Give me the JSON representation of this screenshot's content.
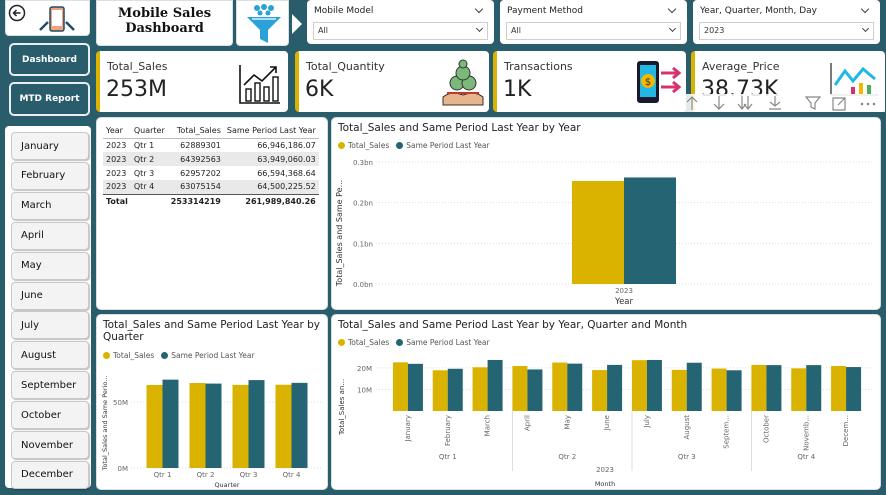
{
  "colors": {
    "bg": "#2a5d6c",
    "gold": "#d9b300",
    "teal": "#246473"
  },
  "title": {
    "line1": "Mobile Sales",
    "line2": "Dashboard"
  },
  "nav": {
    "dashboard": "Dashboard",
    "mtd": "MTD Report"
  },
  "months": [
    "January",
    "February",
    "March",
    "April",
    "May",
    "June",
    "July",
    "August",
    "September",
    "October",
    "November",
    "December"
  ],
  "filters": [
    {
      "label": "Mobile Model",
      "value": "All"
    },
    {
      "label": "Payment Method",
      "value": "All"
    },
    {
      "label": "Year, Quarter, Month, Day",
      "value": "2023"
    }
  ],
  "kpis": [
    {
      "label": "Total_Sales",
      "value": "253M",
      "icon": "growth-chart-icon"
    },
    {
      "label": "Total_Quantity",
      "value": "6K",
      "icon": "money-bag-hand-icon"
    },
    {
      "label": "Transactions",
      "value": "1K",
      "icon": "phone-payment-icon"
    },
    {
      "label": "Average_Price",
      "value": "38.73K",
      "icon": "line-chart-icon"
    }
  ],
  "table": {
    "headers": [
      "Year",
      "Quarter",
      "Total_Sales",
      "Same Period Last Year"
    ],
    "rows": [
      [
        "2023",
        "Qtr 1",
        "62889301",
        "66,946,186.07"
      ],
      [
        "2023",
        "Qtr 2",
        "64392563",
        "63,949,060.03"
      ],
      [
        "2023",
        "Qtr 3",
        "62957202",
        "66,594,368.64"
      ],
      [
        "2023",
        "Qtr 4",
        "63075154",
        "64,500,225.52"
      ]
    ],
    "total": [
      "Total",
      "",
      "253314219",
      "261,989,840.26"
    ]
  },
  "legend": {
    "s1": "Total_Sales",
    "s2": "Same Period Last Year"
  },
  "chart_data": [
    {
      "type": "bar",
      "title": "Total_Sales and Same Period Last Year by Year",
      "xlabel": "Year",
      "ylabel": "Total_Sales and Same Pe...",
      "categories": [
        "2023"
      ],
      "yticks": [
        "0.0bn",
        "0.1bn",
        "0.2bn",
        "0.3bn"
      ],
      "ylim": [
        0,
        300000000
      ],
      "series": [
        {
          "name": "Total_Sales",
          "values": [
            253314219
          ]
        },
        {
          "name": "Same Period Last Year",
          "values": [
            261989840.26
          ]
        }
      ]
    },
    {
      "type": "bar",
      "title": "Total_Sales and Same Period Last Year by Quarter",
      "xlabel": "Quarter",
      "ylabel": "Total_Sales and Same Perio...",
      "categories": [
        "Qtr 1",
        "Qtr 2",
        "Qtr 3",
        "Qtr 4"
      ],
      "yticks": [
        "0M",
        "50M"
      ],
      "ylim": [
        0,
        75000000
      ],
      "series": [
        {
          "name": "Total_Sales",
          "values": [
            62889301,
            64392563,
            62957202,
            63075154
          ]
        },
        {
          "name": "Same Period Last Year",
          "values": [
            66946186.07,
            63949060.03,
            66594368.64,
            64500225.52
          ]
        }
      ]
    },
    {
      "type": "bar",
      "title": "Total_Sales and Same Period Last Year by Year, Quarter and Month",
      "xlabel": "Month",
      "ylabel": "Total_Sales an...",
      "categories": [
        "January",
        "February",
        "March",
        "April",
        "May",
        "June",
        "July",
        "August",
        "Septem...",
        "October",
        "Novemb...",
        "Decem..."
      ],
      "tick_display": [
        "January",
        "February",
        "March",
        "April",
        "May",
        "June",
        "July",
        "August",
        "Septem...",
        "October",
        "Novemb...",
        "Decem..."
      ],
      "groups": [
        "Qtr 1",
        "Qtr 2",
        "Qtr 3",
        "Qtr 4"
      ],
      "year": "2023",
      "yticks": [
        "10M",
        "20M"
      ],
      "ylim": [
        0,
        26000000
      ],
      "series": [
        {
          "name": "Total_Sales",
          "values": [
            22600000,
            18900000,
            20300000,
            20900000,
            22500000,
            19000000,
            23600000,
            19100000,
            19700000,
            21400000,
            19800000,
            20900000
          ]
        },
        {
          "name": "Same Period Last Year",
          "values": [
            21900000,
            19600000,
            23700000,
            19300000,
            22000000,
            21400000,
            23700000,
            22400000,
            18900000,
            21300000,
            21300000,
            20400000
          ]
        }
      ]
    }
  ]
}
